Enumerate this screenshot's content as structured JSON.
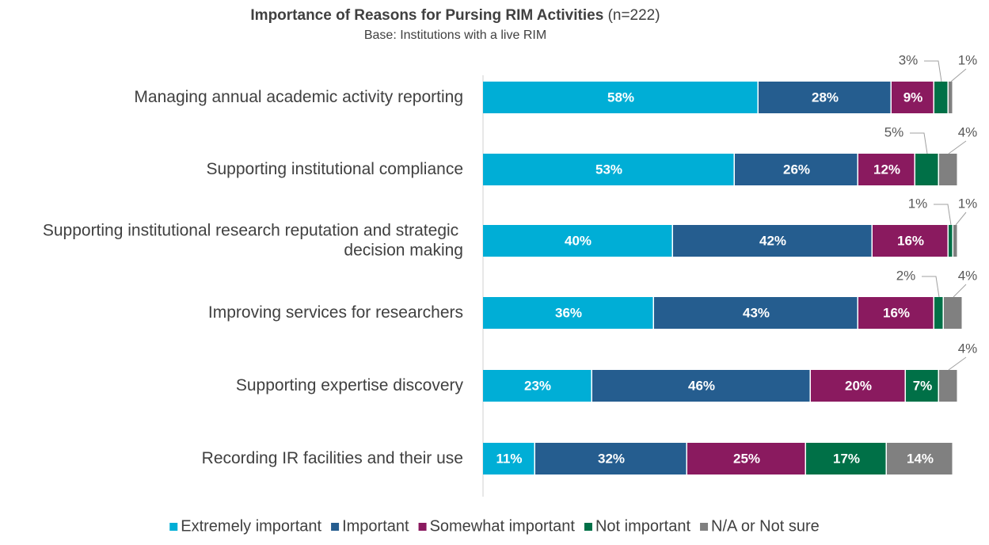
{
  "chart_data": {
    "type": "stacked_bar_horizontal",
    "title": "Importance of Reasons for Pursing RIM Activities",
    "title_note": "(n=222)",
    "subtitle": "Base: Institutions with a live RIM",
    "categories": [
      "Managing annual academic activity reporting",
      "Supporting institutional compliance",
      "Supporting institutional research reputation and strategic decision making",
      "Improving services for researchers",
      "Supporting expertise discovery",
      "Recording IR facilities and their use"
    ],
    "xlim": [
      0,
      100
    ],
    "series": [
      {
        "name": "Extremely important",
        "color": "#00aed6",
        "values": [
          58,
          53,
          40,
          36,
          23,
          11
        ],
        "value_labels": [
          "58%",
          "53%",
          "40%",
          "36%",
          "23%",
          "11%"
        ]
      },
      {
        "name": "Important",
        "color": "#255d8f",
        "values": [
          28,
          26,
          42,
          43,
          46,
          32
        ],
        "value_labels": [
          "28%",
          "26%",
          "42%",
          "43%",
          "46%",
          "32%"
        ]
      },
      {
        "name": "Somewhat important",
        "color": "#8a1a5f",
        "values": [
          9,
          12,
          16,
          16,
          20,
          25
        ],
        "value_labels": [
          "9%",
          "12%",
          "16%",
          "16%",
          "20%",
          "25%"
        ]
      },
      {
        "name": "Not important",
        "color": "#007047",
        "values": [
          3,
          5,
          1,
          2,
          7,
          17
        ],
        "value_labels": [
          "3%",
          "5%",
          "1%",
          "2%",
          "7%",
          "17%"
        ]
      },
      {
        "name": "N/A or Not sure",
        "color": "#808080",
        "values": [
          1,
          4,
          1,
          4,
          4,
          14
        ],
        "value_labels": [
          "1%",
          "4%",
          "1%",
          "4%",
          "4%",
          "14%"
        ]
      }
    ],
    "legend": "bottom"
  }
}
